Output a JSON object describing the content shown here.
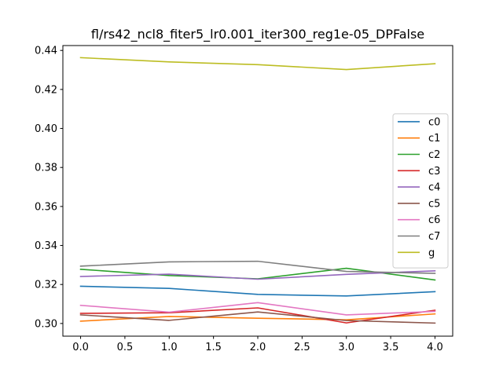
{
  "chart_data": {
    "type": "line",
    "title": "fl/rs42_ncl8_fiter5_lr0.001_iter300_reg1e-05_DPFalse",
    "xlabel": "",
    "ylabel": "",
    "x": [
      0,
      1,
      2,
      3,
      4
    ],
    "xlim": [
      -0.2,
      4.2
    ],
    "ylim": [
      0.2935,
      0.4425
    ],
    "x_ticks": [
      0.0,
      0.5,
      1.0,
      1.5,
      2.0,
      2.5,
      3.0,
      3.5,
      4.0
    ],
    "x_tick_labels": [
      "0.0",
      "0.5",
      "1.0",
      "1.5",
      "2.0",
      "2.5",
      "3.0",
      "3.5",
      "4.0"
    ],
    "y_ticks": [
      0.3,
      0.32,
      0.34,
      0.36,
      0.38,
      0.4,
      0.42,
      0.44
    ],
    "y_tick_labels": [
      "0.30",
      "0.32",
      "0.34",
      "0.36",
      "0.38",
      "0.40",
      "0.42",
      "0.44"
    ],
    "grid": false,
    "legend_position": "center-right",
    "series": [
      {
        "name": "c0",
        "color": "#1f77b4",
        "values": [
          0.3191,
          0.318,
          0.3149,
          0.3141,
          0.3163
        ]
      },
      {
        "name": "c1",
        "color": "#ff7f0e",
        "values": [
          0.3012,
          0.3036,
          0.3027,
          0.3019,
          0.3049
        ]
      },
      {
        "name": "c2",
        "color": "#2ca02c",
        "values": [
          0.3278,
          0.3246,
          0.3229,
          0.3283,
          0.3223
        ]
      },
      {
        "name": "c3",
        "color": "#d62728",
        "values": [
          0.3052,
          0.3055,
          0.308,
          0.3003,
          0.3068
        ]
      },
      {
        "name": "c4",
        "color": "#9467bd",
        "values": [
          0.3241,
          0.3253,
          0.3227,
          0.3252,
          0.327
        ]
      },
      {
        "name": "c5",
        "color": "#8c564b",
        "values": [
          0.3044,
          0.3016,
          0.3059,
          0.3015,
          0.3002
        ]
      },
      {
        "name": "c6",
        "color": "#e377c2",
        "values": [
          0.3093,
          0.3058,
          0.3107,
          0.3044,
          0.3062
        ]
      },
      {
        "name": "c7",
        "color": "#7f7f7f",
        "values": [
          0.3294,
          0.3316,
          0.3319,
          0.3267,
          0.3257
        ]
      },
      {
        "name": "g",
        "color": "#bcbd22",
        "values": [
          0.4363,
          0.4341,
          0.4327,
          0.4302,
          0.4332
        ]
      }
    ]
  }
}
